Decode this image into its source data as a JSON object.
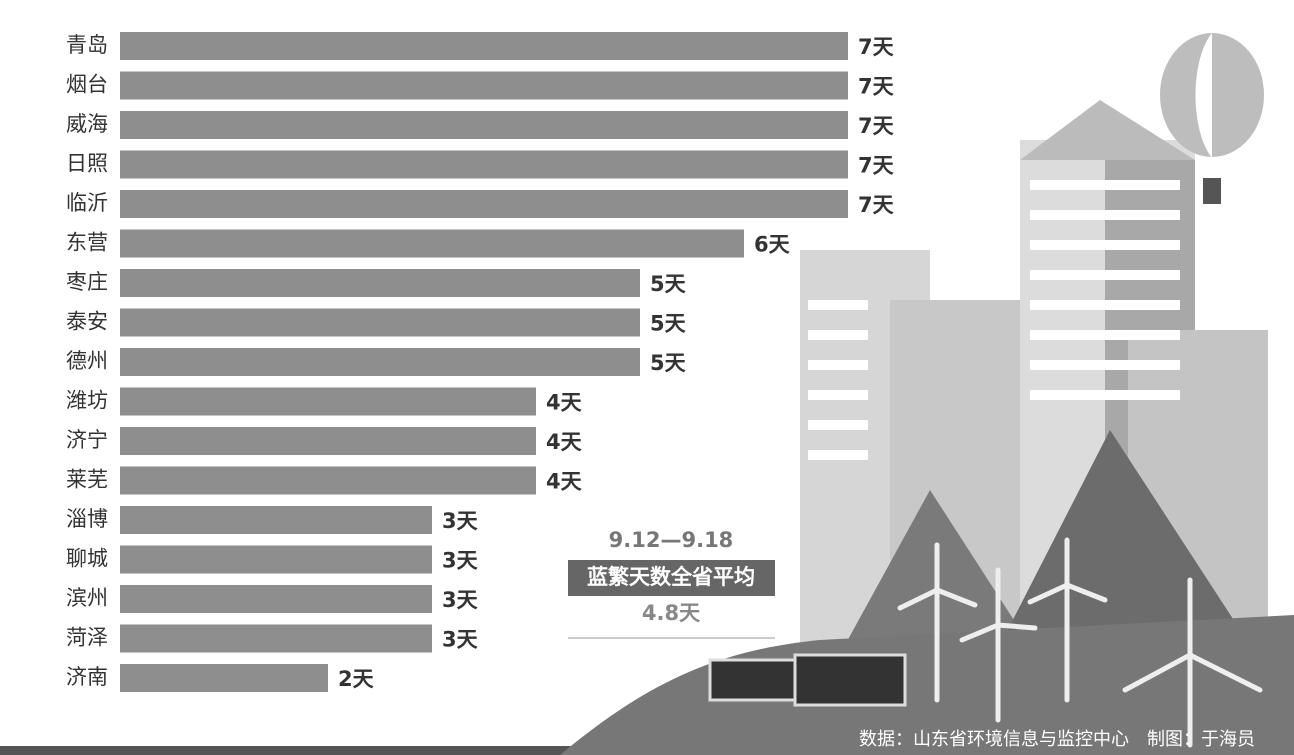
{
  "chart_data": {
    "type": "bar",
    "orientation": "horizontal",
    "color": "#8e8e8e",
    "categories": [
      "青岛",
      "烟台",
      "威海",
      "日照",
      "临沂",
      "东营",
      "枣庄",
      "泰安",
      "德州",
      "潍坊",
      "济宁",
      "莱芜",
      "淄博",
      "聊城",
      "滨州",
      "菏泽",
      "济南"
    ],
    "values": [
      7,
      7,
      7,
      7,
      7,
      6,
      5,
      5,
      5,
      4,
      4,
      4,
      3,
      3,
      3,
      3,
      2
    ],
    "value_labels": [
      "7天",
      "7天",
      "7天",
      "7天",
      "7天",
      "6天",
      "5天",
      "5天",
      "5天",
      "4天",
      "4天",
      "4天",
      "3天",
      "3天",
      "3天",
      "3天",
      "2天"
    ],
    "annotations": [
      "9.12—9.18",
      "蓝繁天数全省平均",
      "4.8天"
    ],
    "source": "数据：山东省环境信息与监控中心　制图：于海员"
  }
}
